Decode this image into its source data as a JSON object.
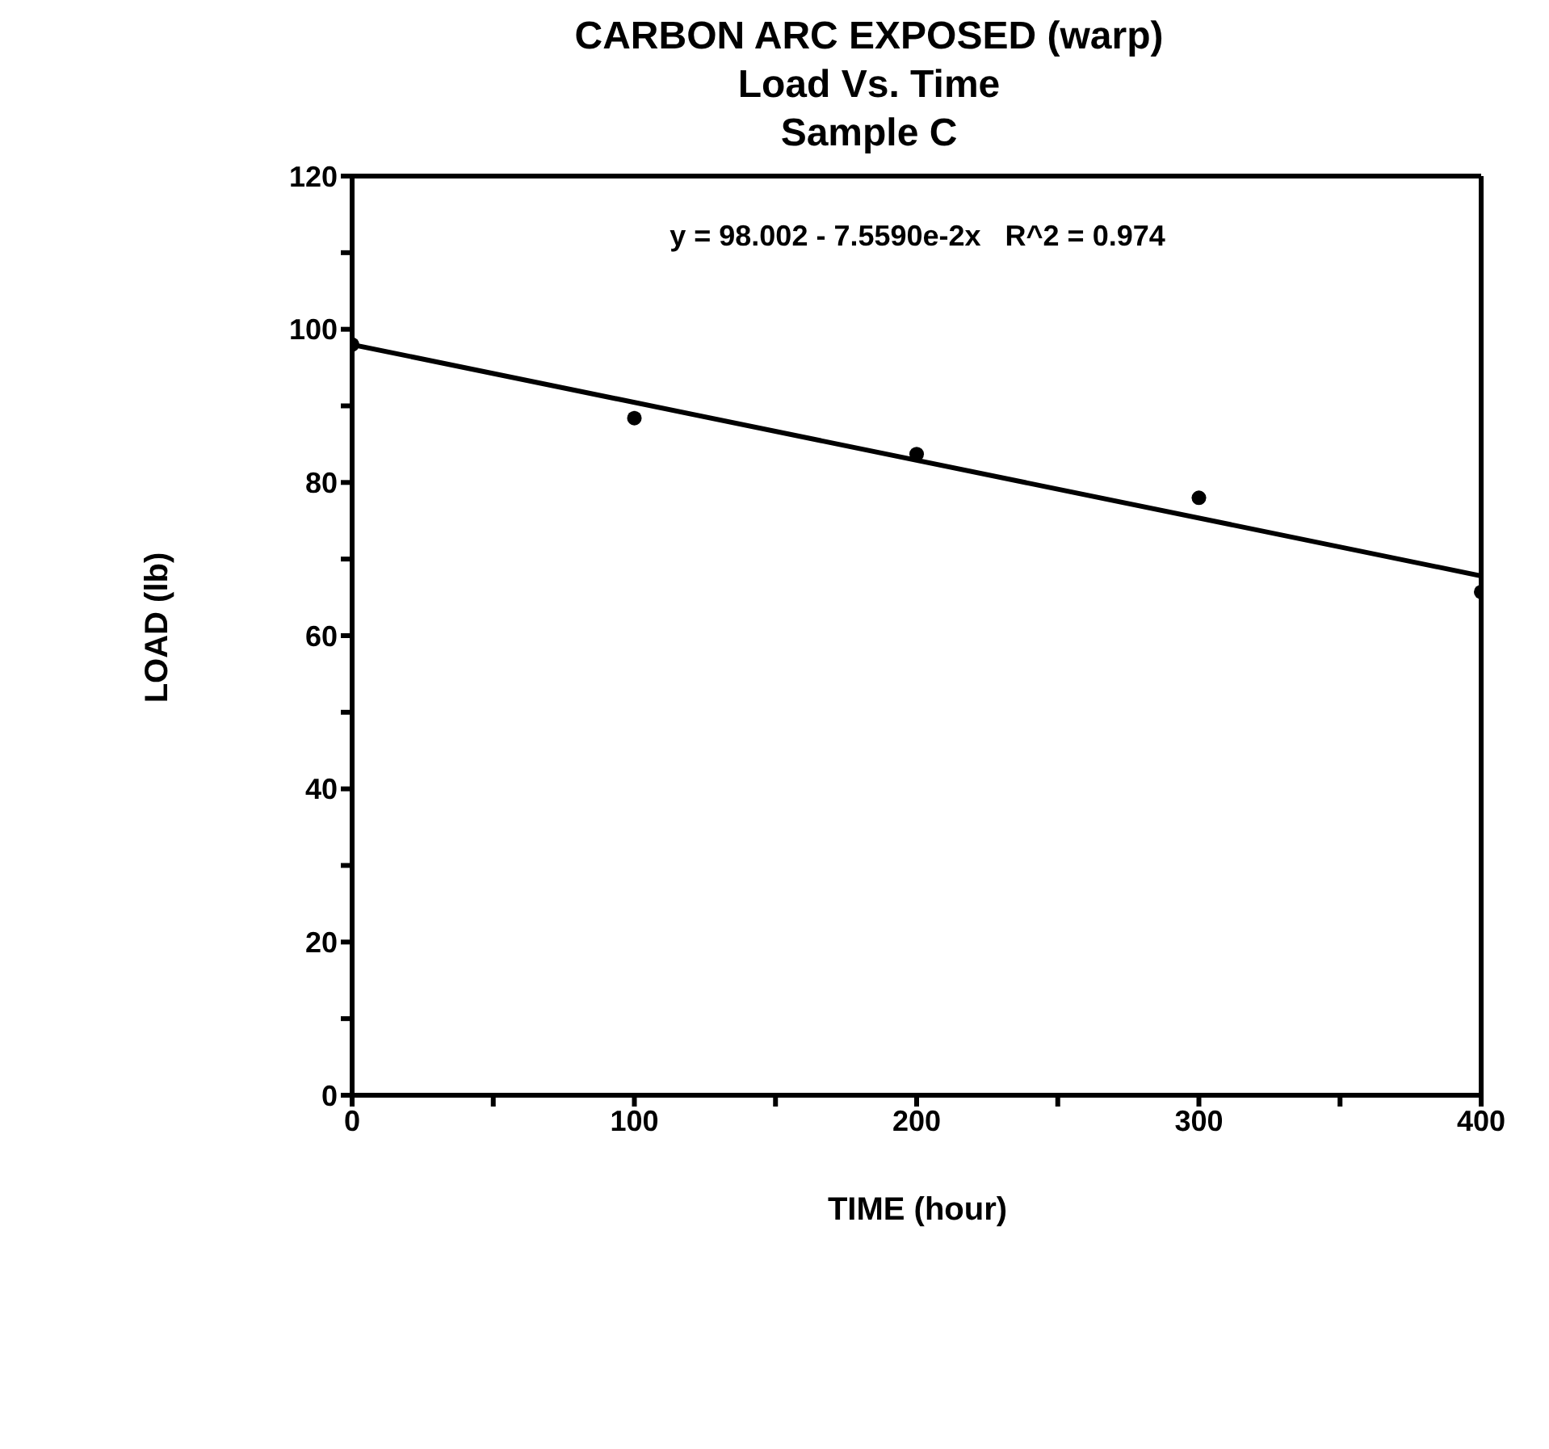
{
  "chart_data": {
    "type": "scatter",
    "title": "CARBON ARC EXPOSED (warp)\nLoad Vs. Time\nSample C",
    "xlabel": "TIME (hour)",
    "ylabel": "LOAD  (lb)",
    "annotations": [
      "y = 98.002 - 7.5590e-2x   R^2 = 0.974"
    ],
    "x": [
      0,
      100,
      200,
      300,
      400
    ],
    "series": [
      {
        "color": "#000000",
        "marker": "circle",
        "values": [
          98.0,
          88.4,
          83.7,
          78.0,
          65.7
        ]
      },
      {
        "type": "line",
        "color": "#000000",
        "marker": "none",
        "line_style": "solid",
        "x": [
          0,
          400
        ],
        "values": [
          98.0,
          67.8
        ]
      }
    ],
    "xlim": [
      0,
      400
    ],
    "ylim": [
      0,
      120
    ],
    "xticks": [
      0,
      {
        "value": 50,
        "label": null
      },
      100,
      {
        "value": 150,
        "label": null
      },
      200,
      {
        "value": 250,
        "label": null
      },
      300,
      {
        "value": 350,
        "label": null
      },
      400
    ],
    "yticks": [
      0,
      {
        "value": 10,
        "label": null
      },
      20,
      {
        "value": 30,
        "label": null
      },
      40,
      {
        "value": 50,
        "label": null
      },
      60,
      {
        "value": 70,
        "label": null
      },
      80,
      {
        "value": 90,
        "label": null
      },
      100,
      {
        "value": 110,
        "label": null
      },
      120
    ]
  }
}
